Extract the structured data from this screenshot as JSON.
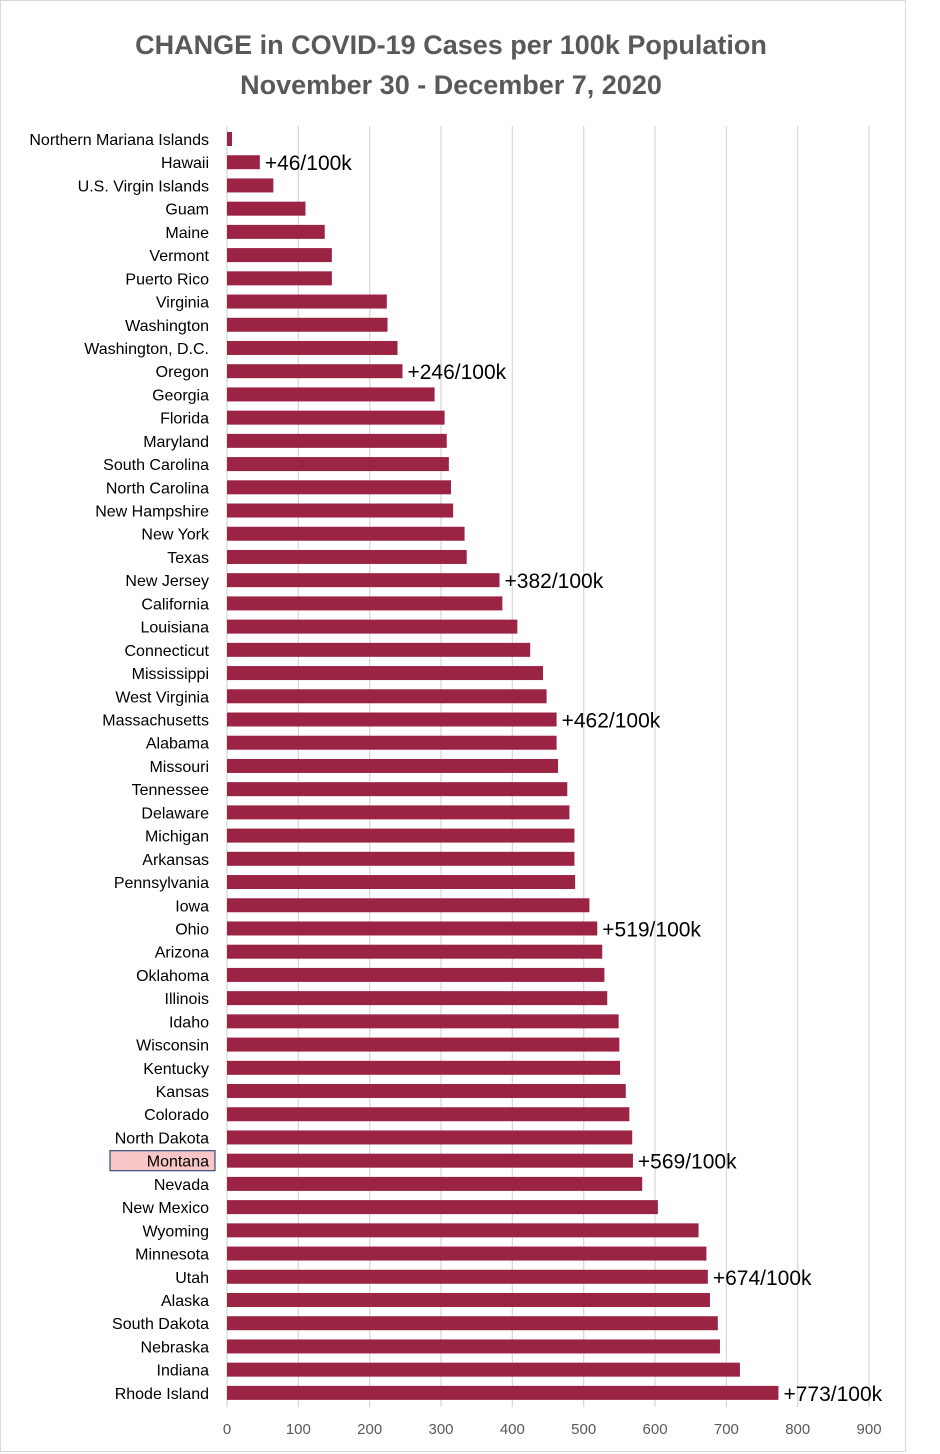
{
  "colors": {
    "bar": "#9b2445",
    "grid": "#d9d9d9",
    "highlight_fill": "#f8c6c6",
    "highlight_border": "#2f4f7f"
  },
  "chart_data": {
    "type": "bar",
    "orientation": "horizontal",
    "title": "CHANGE in COVID-19 Cases per 100k Population",
    "subtitle": "November 30 - December 7, 2020",
    "xlim": [
      0,
      900
    ],
    "xticks": [
      0,
      100,
      200,
      300,
      400,
      500,
      600,
      700,
      800,
      900
    ],
    "grid": "vertical",
    "highlighted_category": "Montana",
    "categories": [
      "Northern Mariana Islands",
      "Hawaii",
      "U.S. Virgin Islands",
      "Guam",
      "Maine",
      "Vermont",
      "Puerto Rico",
      "Virginia",
      "Washington",
      "Washington, D.C.",
      "Oregon",
      "Georgia",
      "Florida",
      "Maryland",
      "South Carolina",
      "North Carolina",
      "New Hampshire",
      "New York",
      "Texas",
      "New Jersey",
      "California",
      "Louisiana",
      "Connecticut",
      "Mississippi",
      "West Virginia",
      "Massachusetts",
      "Alabama",
      "Missouri",
      "Tennessee",
      "Delaware",
      "Michigan",
      "Arkansas",
      "Pennsylvania",
      "Iowa",
      "Ohio",
      "Arizona",
      "Oklahoma",
      "Illinois",
      "Idaho",
      "Wisconsin",
      "Kentucky",
      "Kansas",
      "Colorado",
      "North Dakota",
      "Montana",
      "Nevada",
      "New Mexico",
      "Wyoming",
      "Minnesota",
      "Utah",
      "Alaska",
      "South Dakota",
      "Nebraska",
      "Indiana",
      "Rhode Island"
    ],
    "values": [
      7,
      46,
      65,
      110,
      137,
      147,
      147,
      224,
      225,
      239,
      246,
      291,
      305,
      308,
      311,
      314,
      317,
      333,
      336,
      382,
      386,
      407,
      425,
      443,
      448,
      462,
      462,
      464,
      477,
      480,
      487,
      487,
      488,
      508,
      519,
      526,
      529,
      533,
      549,
      550,
      551,
      559,
      564,
      568,
      569,
      582,
      604,
      661,
      672,
      674,
      677,
      688,
      691,
      719,
      773
    ],
    "annotations": [
      {
        "category": "Hawaii",
        "text": "+46/100k"
      },
      {
        "category": "Oregon",
        "text": "+246/100k"
      },
      {
        "category": "New Jersey",
        "text": "+382/100k"
      },
      {
        "category": "Massachusetts",
        "text": "+462/100k"
      },
      {
        "category": "Ohio",
        "text": "+519/100k"
      },
      {
        "category": "Montana",
        "text": "+569/100k"
      },
      {
        "category": "Utah",
        "text": "+674/100k"
      },
      {
        "category": "Rhode Island",
        "text": "+773/100k"
      }
    ]
  }
}
